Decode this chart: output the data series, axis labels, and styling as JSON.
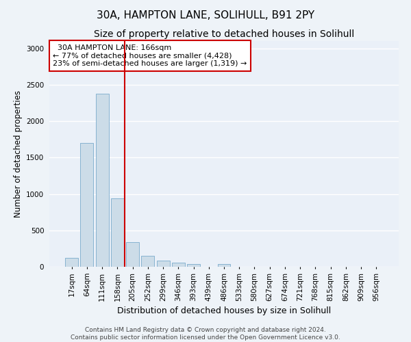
{
  "title": "30A, HAMPTON LANE, SOLIHULL, B91 2PY",
  "subtitle": "Size of property relative to detached houses in Solihull",
  "xlabel": "Distribution of detached houses by size in Solihull",
  "ylabel": "Number of detached properties",
  "bar_color": "#ccdce8",
  "bar_edge_color": "#7aabcc",
  "background_color": "#eaf0f8",
  "grid_color": "#ffffff",
  "annotation_box_color": "#cc0000",
  "vline_color": "#cc0000",
  "vline_position": 3.5,
  "annotation_text": "  30A HAMPTON LANE: 166sqm\n← 77% of detached houses are smaller (4,428)\n23% of semi-detached houses are larger (1,319) →",
  "categories": [
    "17sqm",
    "64sqm",
    "111sqm",
    "158sqm",
    "205sqm",
    "252sqm",
    "299sqm",
    "346sqm",
    "393sqm",
    "439sqm",
    "486sqm",
    "533sqm",
    "580sqm",
    "627sqm",
    "674sqm",
    "721sqm",
    "768sqm",
    "815sqm",
    "862sqm",
    "909sqm",
    "956sqm"
  ],
  "bar_heights": [
    120,
    1700,
    2380,
    940,
    340,
    155,
    80,
    55,
    35,
    0,
    40,
    0,
    0,
    0,
    0,
    0,
    0,
    0,
    0,
    0,
    0
  ],
  "ylim": [
    0,
    3100
  ],
  "yticks": [
    0,
    500,
    1000,
    1500,
    2000,
    2500,
    3000
  ],
  "footer_text": "Contains HM Land Registry data © Crown copyright and database right 2024.\nContains public sector information licensed under the Open Government Licence v3.0.",
  "title_fontsize": 11,
  "subtitle_fontsize": 10,
  "xlabel_fontsize": 9,
  "ylabel_fontsize": 8.5,
  "tick_fontsize": 7.5,
  "footer_fontsize": 6.5
}
